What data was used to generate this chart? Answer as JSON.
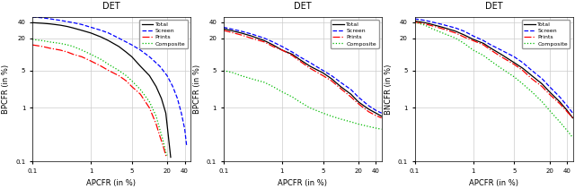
{
  "title": "DET",
  "xlabel": "APCFR (in %)",
  "ylabels": [
    "BPCFR (in %)",
    "BPCFR (in %)",
    "BNCFR (in %)"
  ],
  "legend_labels": [
    "Total",
    "Screen",
    "Prints",
    "Composite"
  ],
  "line_styles": [
    {
      "color": "#000000",
      "linestyle": "-",
      "linewidth": 0.9
    },
    {
      "color": "#0000ff",
      "linestyle": "--",
      "linewidth": 0.9
    },
    {
      "color": "#ff0000",
      "linestyle": "-.",
      "linewidth": 0.9
    },
    {
      "color": "#00bb00",
      "linestyle": ":",
      "linewidth": 0.9
    }
  ],
  "xticks": [
    0.1,
    1,
    5,
    20,
    40
  ],
  "yticks": [
    0.1,
    1,
    5,
    20,
    40
  ],
  "xlim": [
    0.1,
    50
  ],
  "ylim": [
    0.1,
    50
  ],
  "plots": [
    {
      "curves": {
        "total": {
          "x": [
            0.1,
            0.15,
            0.2,
            0.3,
            0.4,
            0.5,
            0.7,
            1.0,
            1.5,
            2,
            3,
            4,
            5,
            7,
            10,
            13,
            16,
            19,
            21,
            23
          ],
          "y": [
            39,
            38,
            37,
            35,
            33,
            31,
            28,
            25,
            21,
            18,
            14,
            11,
            9,
            6,
            4,
            2.5,
            1.5,
            0.8,
            0.3,
            0.12
          ]
        },
        "screen": {
          "x": [
            0.1,
            0.15,
            0.2,
            0.3,
            0.5,
            0.7,
            1,
            1.5,
            2,
            3,
            5,
            7,
            10,
            15,
            20,
            25,
            30,
            35,
            40,
            43
          ],
          "y": [
            50,
            48,
            46,
            43,
            39,
            36,
            32,
            28,
            25,
            20,
            15,
            12,
            9,
            6,
            4,
            2.5,
            1.5,
            0.8,
            0.4,
            0.2
          ]
        },
        "prints": {
          "x": [
            0.1,
            0.15,
            0.2,
            0.3,
            0.4,
            0.5,
            0.7,
            1.0,
            1.5,
            2,
            3,
            4,
            5,
            7,
            10,
            13,
            15,
            17,
            19,
            20
          ],
          "y": [
            15,
            14,
            13,
            12,
            11,
            10,
            9,
            7.5,
            6,
            5,
            4,
            3.2,
            2.5,
            1.8,
            1.0,
            0.5,
            0.3,
            0.2,
            0.13,
            0.12
          ]
        },
        "composite": {
          "x": [
            0.1,
            0.15,
            0.2,
            0.3,
            0.4,
            0.5,
            0.7,
            1.0,
            1.5,
            2,
            3,
            4,
            5,
            7,
            10,
            13,
            15,
            17,
            19,
            20
          ],
          "y": [
            19,
            18,
            17,
            16,
            15,
            14,
            12,
            10,
            8,
            6.5,
            5,
            4,
            3.2,
            2.2,
            1.3,
            0.7,
            0.4,
            0.25,
            0.15,
            0.13
          ]
        }
      }
    },
    {
      "curves": {
        "total": {
          "x": [
            0.1,
            0.15,
            0.2,
            0.3,
            0.5,
            0.7,
            1,
            1.5,
            2,
            3,
            5,
            7,
            10,
            15,
            20,
            30,
            40,
            50
          ],
          "y": [
            30,
            27,
            25,
            22,
            18,
            15,
            12,
            10,
            8,
            6,
            4.5,
            3.5,
            2.5,
            1.8,
            1.3,
            0.95,
            0.8,
            0.7
          ]
        },
        "screen": {
          "x": [
            0.1,
            0.15,
            0.2,
            0.3,
            0.5,
            0.7,
            1,
            1.5,
            2,
            3,
            5,
            7,
            10,
            15,
            20,
            30,
            40,
            50
          ],
          "y": [
            32,
            29,
            27,
            24,
            20,
            17,
            14,
            11,
            9,
            7,
            5,
            4,
            3,
            2.2,
            1.6,
            1.1,
            0.9,
            0.8
          ]
        },
        "prints": {
          "x": [
            0.1,
            0.15,
            0.2,
            0.3,
            0.5,
            0.7,
            1,
            1.5,
            2,
            3,
            5,
            7,
            10,
            15,
            20,
            30,
            40,
            50
          ],
          "y": [
            28,
            25,
            23,
            20,
            17,
            14,
            12,
            9.5,
            7.5,
            5.5,
            4,
            3.2,
            2.3,
            1.6,
            1.2,
            0.85,
            0.72,
            0.65
          ]
        },
        "composite": {
          "x": [
            0.1,
            0.15,
            0.2,
            0.3,
            0.5,
            0.7,
            1,
            1.5,
            2,
            3,
            5,
            7,
            10,
            15,
            20,
            30,
            40,
            50
          ],
          "y": [
            5,
            4.5,
            4,
            3.5,
            3,
            2.5,
            2,
            1.6,
            1.3,
            1.0,
            0.8,
            0.7,
            0.62,
            0.55,
            0.5,
            0.45,
            0.42,
            0.4
          ]
        }
      }
    },
    {
      "curves": {
        "total": {
          "x": [
            0.1,
            0.15,
            0.2,
            0.3,
            0.5,
            0.7,
            1,
            1.5,
            2,
            3,
            5,
            7,
            10,
            15,
            20,
            30,
            40,
            50
          ],
          "y": [
            42,
            39,
            36,
            32,
            27,
            23,
            19,
            16,
            13,
            10,
            7,
            5.5,
            4,
            2.8,
            2,
            1.3,
            0.9,
            0.65
          ]
        },
        "screen": {
          "x": [
            0.1,
            0.15,
            0.2,
            0.3,
            0.5,
            0.7,
            1,
            1.5,
            2,
            3,
            5,
            7,
            10,
            15,
            20,
            30,
            40,
            50
          ],
          "y": [
            46,
            43,
            40,
            36,
            31,
            27,
            22,
            18,
            15,
            12,
            9,
            7,
            5,
            3.5,
            2.5,
            1.6,
            1.1,
            0.8
          ]
        },
        "prints": {
          "x": [
            0.1,
            0.15,
            0.2,
            0.3,
            0.5,
            0.7,
            1,
            1.5,
            2,
            3,
            5,
            7,
            10,
            15,
            20,
            30,
            40,
            50
          ],
          "y": [
            40,
            37,
            34,
            30,
            25,
            21,
            18,
            15,
            12,
            9,
            6.5,
            5,
            3.5,
            2.5,
            1.8,
            1.2,
            0.85,
            0.65
          ]
        },
        "composite": {
          "x": [
            0.1,
            0.15,
            0.2,
            0.3,
            0.5,
            0.7,
            1,
            1.5,
            2,
            3,
            5,
            7,
            10,
            15,
            20,
            30,
            40,
            50
          ],
          "y": [
            40,
            35,
            30,
            25,
            20,
            16,
            12,
            9.5,
            7.5,
            5.5,
            3.8,
            2.8,
            2,
            1.3,
            0.9,
            0.55,
            0.38,
            0.28
          ]
        }
      }
    }
  ],
  "background_color": "#ffffff",
  "grid_color": "#cccccc"
}
